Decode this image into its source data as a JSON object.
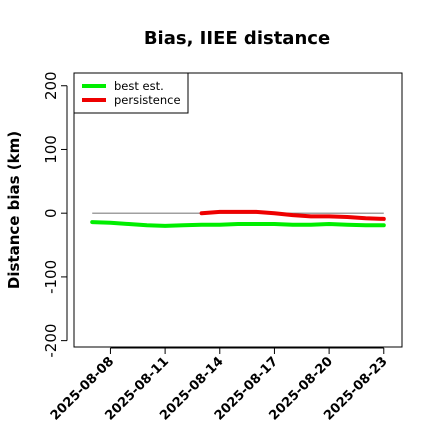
{
  "chart_data": {
    "type": "line",
    "title": "Bias, IIEE distance",
    "xlabel": "",
    "ylabel": "Distance bias (km)",
    "x_ticks": [
      "2025-08-08",
      "2025-08-11",
      "2025-08-14",
      "2025-08-17",
      "2025-08-20",
      "2025-08-23"
    ],
    "xlim": [
      "2025-08-06",
      "2025-08-24"
    ],
    "ylim": [
      -210,
      220
    ],
    "y_ticks": [
      -200,
      -100,
      0,
      100,
      200
    ],
    "y_tick_labels": [
      "-200",
      "-100",
      "0",
      "100",
      "200"
    ],
    "grid": false,
    "legend_position": "top-left",
    "reference_line": {
      "y": 0,
      "x_range": [
        "2025-08-07",
        "2025-08-23"
      ],
      "color": "#808080"
    },
    "series": [
      {
        "name": "best est.",
        "color": "#00ee00",
        "x": [
          "2025-08-07",
          "2025-08-08",
          "2025-08-09",
          "2025-08-10",
          "2025-08-11",
          "2025-08-12",
          "2025-08-13",
          "2025-08-14",
          "2025-08-15",
          "2025-08-16",
          "2025-08-17",
          "2025-08-18",
          "2025-08-19",
          "2025-08-20",
          "2025-08-21",
          "2025-08-22",
          "2025-08-23"
        ],
        "values": [
          -14,
          -15,
          -17,
          -19,
          -20,
          -19,
          -18,
          -18,
          -17,
          -17,
          -17,
          -18,
          -18,
          -17,
          -18,
          -19,
          -19
        ]
      },
      {
        "name": "persistence",
        "color": "#ee0000",
        "x": [
          "2025-08-13",
          "2025-08-14",
          "2025-08-15",
          "2025-08-16",
          "2025-08-17",
          "2025-08-18",
          "2025-08-19",
          "2025-08-20",
          "2025-08-21",
          "2025-08-22",
          "2025-08-23"
        ],
        "values": [
          0,
          2,
          2,
          2,
          0,
          -3,
          -5,
          -5,
          -6,
          -8,
          -9
        ]
      }
    ]
  }
}
